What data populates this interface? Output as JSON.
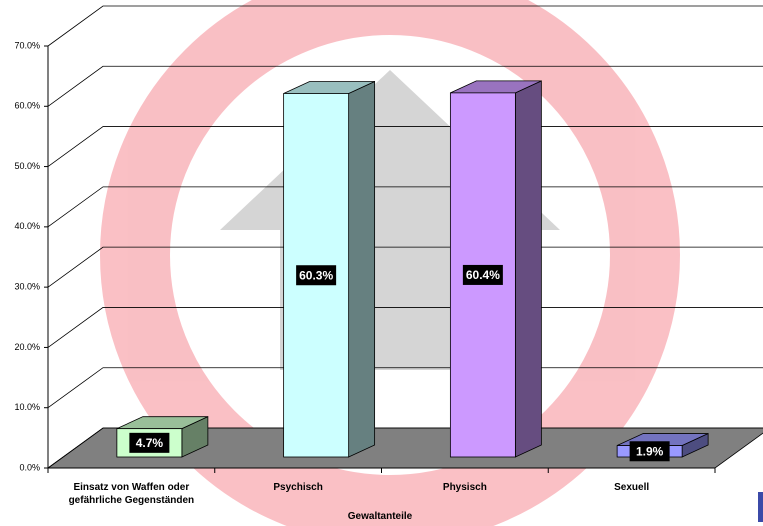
{
  "chart_data": {
    "type": "bar3d",
    "x_label": "Gewaltanteile",
    "categories": [
      "Einsatz von Waffen oder gefährliche Gegenständen",
      "Psychisch",
      "Physisch",
      "Sexuell"
    ],
    "values": [
      4.7,
      60.3,
      60.4,
      1.9
    ],
    "value_labels": [
      "4.7%",
      "60.3%",
      "60.4%",
      "1.9%"
    ],
    "colors": [
      "#ccffcc",
      "#ccffff",
      "#cc99ff",
      "#9999ff"
    ],
    "ylim": [
      0,
      70
    ],
    "yticks": [
      {
        "value": 0,
        "label": "0.0%"
      },
      {
        "value": 10,
        "label": "10.0%"
      },
      {
        "value": 20,
        "label": "20.0%"
      },
      {
        "value": 30,
        "label": "30.0%"
      },
      {
        "value": 40,
        "label": "40.0%"
      },
      {
        "value": 50,
        "label": "50.0%"
      },
      {
        "value": 60,
        "label": "60.0%"
      },
      {
        "value": 70,
        "label": "70.0%"
      }
    ],
    "grid": true
  }
}
